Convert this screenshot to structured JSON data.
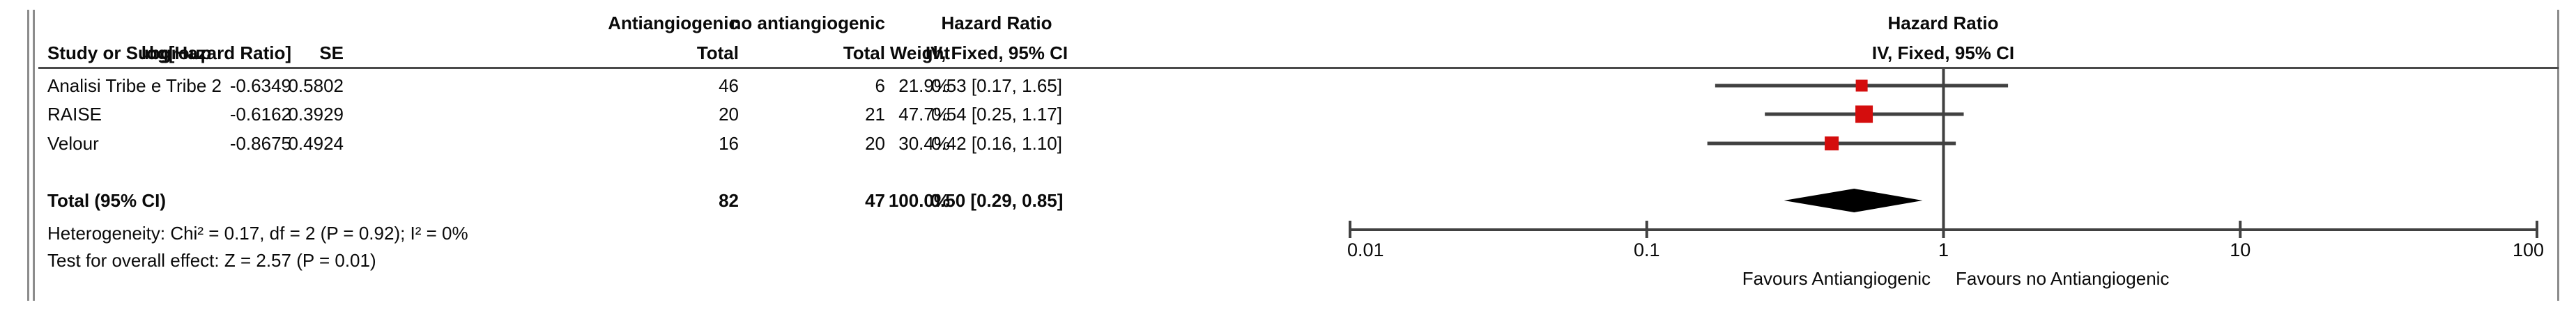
{
  "table": {
    "group_headers": {
      "experimental": "Antiangiogenic",
      "control": "no antiangiogenic"
    },
    "effect_column_header": {
      "line1": "Hazard Ratio",
      "line2": "IV, Fixed, 95% CI"
    },
    "plot_column_header": {
      "line1": "Hazard Ratio",
      "line2": "IV, Fixed, 95% CI"
    },
    "column_headers": {
      "study": "Study or Subgroup",
      "log_hr": "log[Hazard Ratio]",
      "se": "SE",
      "total_experimental": "Total",
      "total_control": "Total",
      "weight": "Weight"
    },
    "rows": [
      {
        "study": "Analisi Tribe e Tribe 2",
        "log_hr": "-0.6349",
        "se": "0.5802",
        "total_experimental": "46",
        "total_control": "6",
        "weight": "21.9%",
        "ci_text": "0.53 [0.17, 1.65]"
      },
      {
        "study": "RAISE",
        "log_hr": "-0.6162",
        "se": "0.3929",
        "total_experimental": "20",
        "total_control": "21",
        "weight": "47.7%",
        "ci_text": "0.54 [0.25, 1.17]"
      },
      {
        "study": "Velour",
        "log_hr": "-0.8675",
        "se": "0.4924",
        "total_experimental": "16",
        "total_control": "20",
        "weight": "30.4%",
        "ci_text": "0.42 [0.16, 1.10]"
      }
    ],
    "total_row": {
      "label": "Total (95% CI)",
      "total_experimental": "82",
      "total_control": "47",
      "weight": "100.0%",
      "ci_text": "0.50 [0.29, 0.85]"
    },
    "heterogeneity_text": "Heterogeneity: Chi² = 0.17, df = 2 (P = 0.92); I² = 0%",
    "overall_effect_text": "Test for overall effect: Z = 2.57 (P = 0.01)"
  },
  "chart_data": {
    "type": "forest",
    "effect_measure": "Hazard Ratio",
    "method": "IV, Fixed, 95% CI",
    "x_scale": "log10",
    "xlim": [
      0.01,
      100
    ],
    "x_ticks": [
      0.01,
      0.1,
      1,
      10,
      100
    ],
    "null_line_value": 1,
    "studies": [
      {
        "name": "Analisi Tribe e Tribe 2",
        "hr": 0.53,
        "ci_low": 0.17,
        "ci_high": 1.65,
        "weight_pct": 21.9
      },
      {
        "name": "RAISE",
        "hr": 0.54,
        "ci_low": 0.25,
        "ci_high": 1.17,
        "weight_pct": 47.7
      },
      {
        "name": "Velour",
        "hr": 0.42,
        "ci_low": 0.16,
        "ci_high": 1.1,
        "weight_pct": 30.4
      }
    ],
    "total": {
      "label": "Total (95% CI)",
      "hr": 0.5,
      "ci_low": 0.29,
      "ci_high": 0.85,
      "weight_pct": 100.0
    },
    "x_axis_labels": {
      "left": "Favours Antiangiogenic",
      "right": "Favours no Antiangiogenic"
    },
    "marker_color": "#d40d0d",
    "line_color": "#414141",
    "diamond_color": "#000000",
    "legend_position": "none",
    "grid": false
  }
}
